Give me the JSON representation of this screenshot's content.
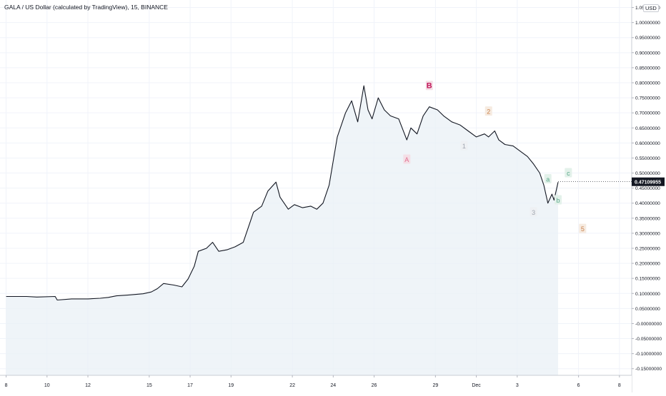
{
  "chart_data": {
    "type": "line",
    "title": "GALA / US Dollar (calculated by TradingView), 15, BINANCE",
    "currency_badge": "USD",
    "last_price_label": "0.47109955",
    "last_price": 0.47109955,
    "y_ticks": [
      "1.05000000",
      "1.00000000",
      "0.95000000",
      "0.90000000",
      "0.85000000",
      "0.80000000",
      "0.75000000",
      "0.70000000",
      "0.65000000",
      "0.60000000",
      "0.55000000",
      "0.50000000",
      "0.45000000",
      "0.40000000",
      "0.35000000",
      "0.30000000",
      "0.25000000",
      "0.20000000",
      "0.15000000",
      "0.10000000",
      "0.05000000",
      "-0.00000000",
      "-0.05000000",
      "-0.10000000",
      "-0.15000000"
    ],
    "x_ticks": [
      {
        "label": "8",
        "x": 0
      },
      {
        "label": "10",
        "x": 2
      },
      {
        "label": "12",
        "x": 4
      },
      {
        "label": "15",
        "x": 7
      },
      {
        "label": "17",
        "x": 9
      },
      {
        "label": "19",
        "x": 11
      },
      {
        "label": "22",
        "x": 14
      },
      {
        "label": "24",
        "x": 16
      },
      {
        "label": "26",
        "x": 18
      },
      {
        "label": "29",
        "x": 21
      },
      {
        "label": "Dec",
        "x": 23
      },
      {
        "label": "3",
        "x": 25
      },
      {
        "label": "6",
        "x": 28
      },
      {
        "label": "8",
        "x": 30
      }
    ],
    "xlim": [
      -0.3,
      30.6
    ],
    "ylim": [
      -0.172,
      1.075
    ],
    "grid": true,
    "line_color": "#131722",
    "area_color": "#e9f0f6",
    "series": [
      {
        "values": [
          [
            0,
            0.09
          ],
          [
            1,
            0.09
          ],
          [
            1.5,
            0.088
          ],
          [
            2.4,
            0.09
          ],
          [
            2.5,
            0.078
          ],
          [
            3.2,
            0.082
          ],
          [
            4,
            0.082
          ],
          [
            4.6,
            0.084
          ],
          [
            5,
            0.087
          ],
          [
            5.4,
            0.092
          ],
          [
            6,
            0.095
          ],
          [
            6.7,
            0.099
          ],
          [
            7.1,
            0.105
          ],
          [
            7.4,
            0.116
          ],
          [
            7.7,
            0.133
          ],
          [
            8.2,
            0.128
          ],
          [
            8.6,
            0.122
          ],
          [
            8.9,
            0.148
          ],
          [
            9.2,
            0.19
          ],
          [
            9.4,
            0.24
          ],
          [
            9.8,
            0.25
          ],
          [
            10.1,
            0.27
          ],
          [
            10.4,
            0.24
          ],
          [
            10.8,
            0.245
          ],
          [
            11.2,
            0.255
          ],
          [
            11.6,
            0.27
          ],
          [
            11.9,
            0.33
          ],
          [
            12.1,
            0.37
          ],
          [
            12.5,
            0.39
          ],
          [
            12.8,
            0.44
          ],
          [
            13.2,
            0.47
          ],
          [
            13.4,
            0.42
          ],
          [
            13.8,
            0.38
          ],
          [
            14.1,
            0.395
          ],
          [
            14.5,
            0.385
          ],
          [
            14.9,
            0.39
          ],
          [
            15.2,
            0.38
          ],
          [
            15.5,
            0.4
          ],
          [
            15.8,
            0.46
          ],
          [
            16.2,
            0.62
          ],
          [
            16.6,
            0.7
          ],
          [
            16.9,
            0.74
          ],
          [
            17.2,
            0.67
          ],
          [
            17.5,
            0.79
          ],
          [
            17.7,
            0.71
          ],
          [
            17.9,
            0.68
          ],
          [
            18.2,
            0.75
          ],
          [
            18.5,
            0.71
          ],
          [
            18.8,
            0.69
          ],
          [
            19.2,
            0.68
          ],
          [
            19.6,
            0.61
          ],
          [
            19.8,
            0.65
          ],
          [
            20.1,
            0.63
          ],
          [
            20.4,
            0.69
          ],
          [
            20.7,
            0.72
          ],
          [
            21.1,
            0.71
          ],
          [
            21.4,
            0.69
          ],
          [
            21.8,
            0.67
          ],
          [
            22.2,
            0.66
          ],
          [
            22.6,
            0.64
          ],
          [
            23,
            0.62
          ],
          [
            23.4,
            0.63
          ],
          [
            23.6,
            0.62
          ],
          [
            23.9,
            0.64
          ],
          [
            24.1,
            0.61
          ],
          [
            24.4,
            0.595
          ],
          [
            24.8,
            0.59
          ],
          [
            25.1,
            0.575
          ],
          [
            25.5,
            0.555
          ],
          [
            25.8,
            0.53
          ],
          [
            26.1,
            0.5
          ],
          [
            26.3,
            0.46
          ],
          [
            26.5,
            0.4
          ],
          [
            26.7,
            0.43
          ],
          [
            26.8,
            0.41
          ],
          [
            27,
            0.47
          ]
        ]
      }
    ],
    "annotations": [
      {
        "label": "A",
        "x": 19.6,
        "y": 0.545,
        "color": "#e06c8e",
        "bg": "#f4dfe6"
      },
      {
        "label": "B",
        "x": 20.7,
        "y": 0.79,
        "color": "#c2185b",
        "bg": "#f4dfe6"
      },
      {
        "label": "1",
        "x": 22.4,
        "y": 0.59,
        "color": "#a0a6b0",
        "bg": "#eef0f3"
      },
      {
        "label": "2",
        "x": 23.6,
        "y": 0.705,
        "color": "#c9804a",
        "bg": "#f6ebe1"
      },
      {
        "label": "3",
        "x": 25.8,
        "y": 0.37,
        "color": "#a0a6b0",
        "bg": "#eef0f3"
      },
      {
        "label": "a",
        "x": 26.5,
        "y": 0.48,
        "color": "#5aa88a",
        "bg": "#e3f1ea"
      },
      {
        "label": "c",
        "x": 27.5,
        "y": 0.5,
        "color": "#5aa88a",
        "bg": "#e3f1ea"
      },
      {
        "label": "b",
        "x": 27,
        "y": 0.41,
        "color": "#5aa88a",
        "bg": "#e3f1ea"
      },
      {
        "label": "5",
        "x": 28.2,
        "y": 0.315,
        "color": "#c9804a",
        "bg": "#f6ebe1"
      }
    ]
  }
}
